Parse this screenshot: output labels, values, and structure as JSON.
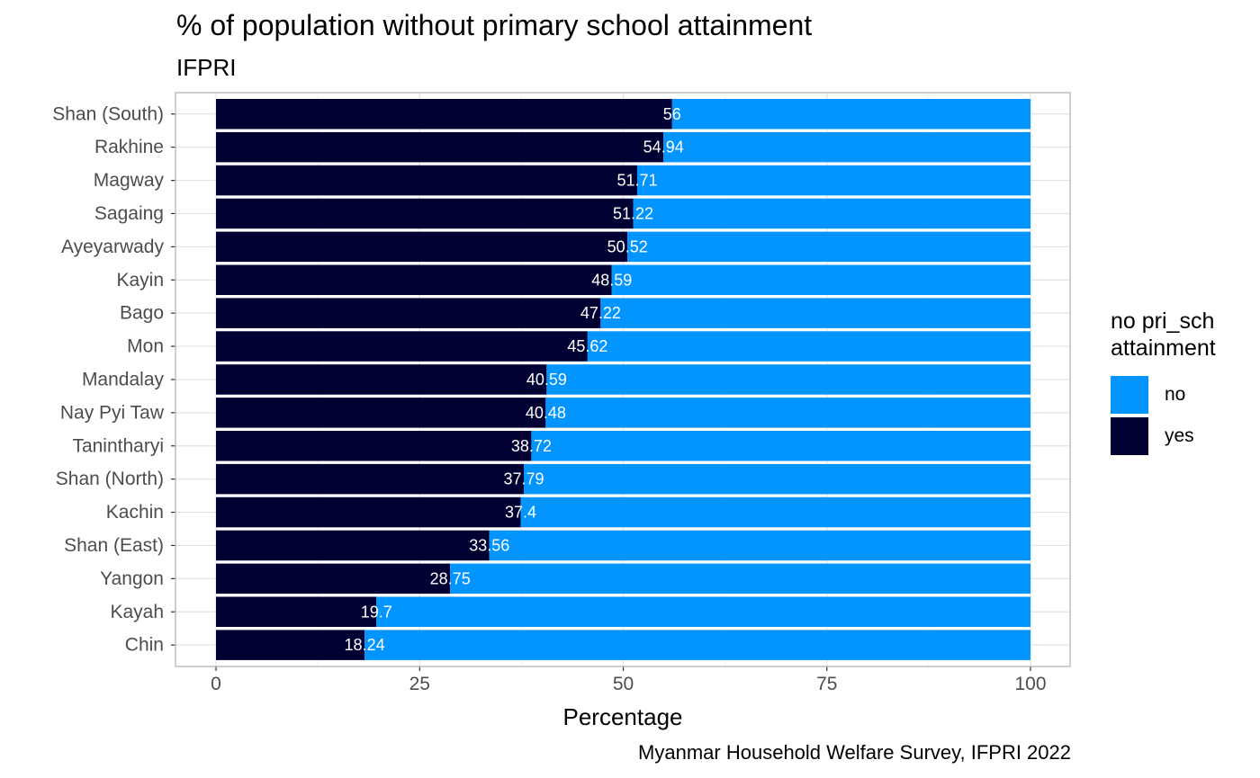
{
  "chart_data": {
    "type": "bar",
    "orientation": "horizontal",
    "stacked": true,
    "title": "% of population without primary school attainment",
    "subtitle": "IFPRI",
    "caption": "Myanmar Household Welfare Survey, IFPRI 2022",
    "xlabel": "Percentage",
    "ylabel": "",
    "xlim": [
      0,
      100
    ],
    "xticks": [
      0,
      25,
      50,
      75,
      100
    ],
    "grid": true,
    "legend": {
      "title": "no pri_sch\nattainment",
      "position": "right",
      "entries": [
        {
          "label": "no",
          "color": "#0395FF"
        },
        {
          "label": "yes",
          "color": "#000033"
        }
      ]
    },
    "categories": [
      "Shan (South)",
      "Rakhine",
      "Magway",
      "Sagaing",
      "Ayeyarwady",
      "Kayin",
      "Bago",
      "Mon",
      "Mandalay",
      "Nay Pyi Taw",
      "Tanintharyi",
      "Shan (North)",
      "Kachin",
      "Shan (East)",
      "Yangon",
      "Kayah",
      "Chin"
    ],
    "series": [
      {
        "name": "yes",
        "color": "#000033",
        "values": [
          56,
          54.94,
          51.71,
          51.22,
          50.52,
          48.59,
          47.22,
          45.62,
          40.59,
          40.48,
          38.72,
          37.79,
          37.4,
          33.56,
          28.75,
          19.7,
          18.24
        ]
      },
      {
        "name": "no",
        "color": "#0395FF",
        "values": [
          44,
          45.06,
          48.29,
          48.78,
          49.48,
          51.41,
          52.78,
          54.38,
          59.41,
          59.52,
          61.28,
          62.21,
          62.6,
          66.44,
          71.25,
          80.3,
          81.76
        ]
      }
    ],
    "data_labels": [
      "56",
      "54.94",
      "51.71",
      "51.22",
      "50.52",
      "48.59",
      "47.22",
      "45.62",
      "40.59",
      "40.48",
      "38.72",
      "37.79",
      "37.4",
      "33.56",
      "28.75",
      "19.7",
      "18.24"
    ]
  }
}
